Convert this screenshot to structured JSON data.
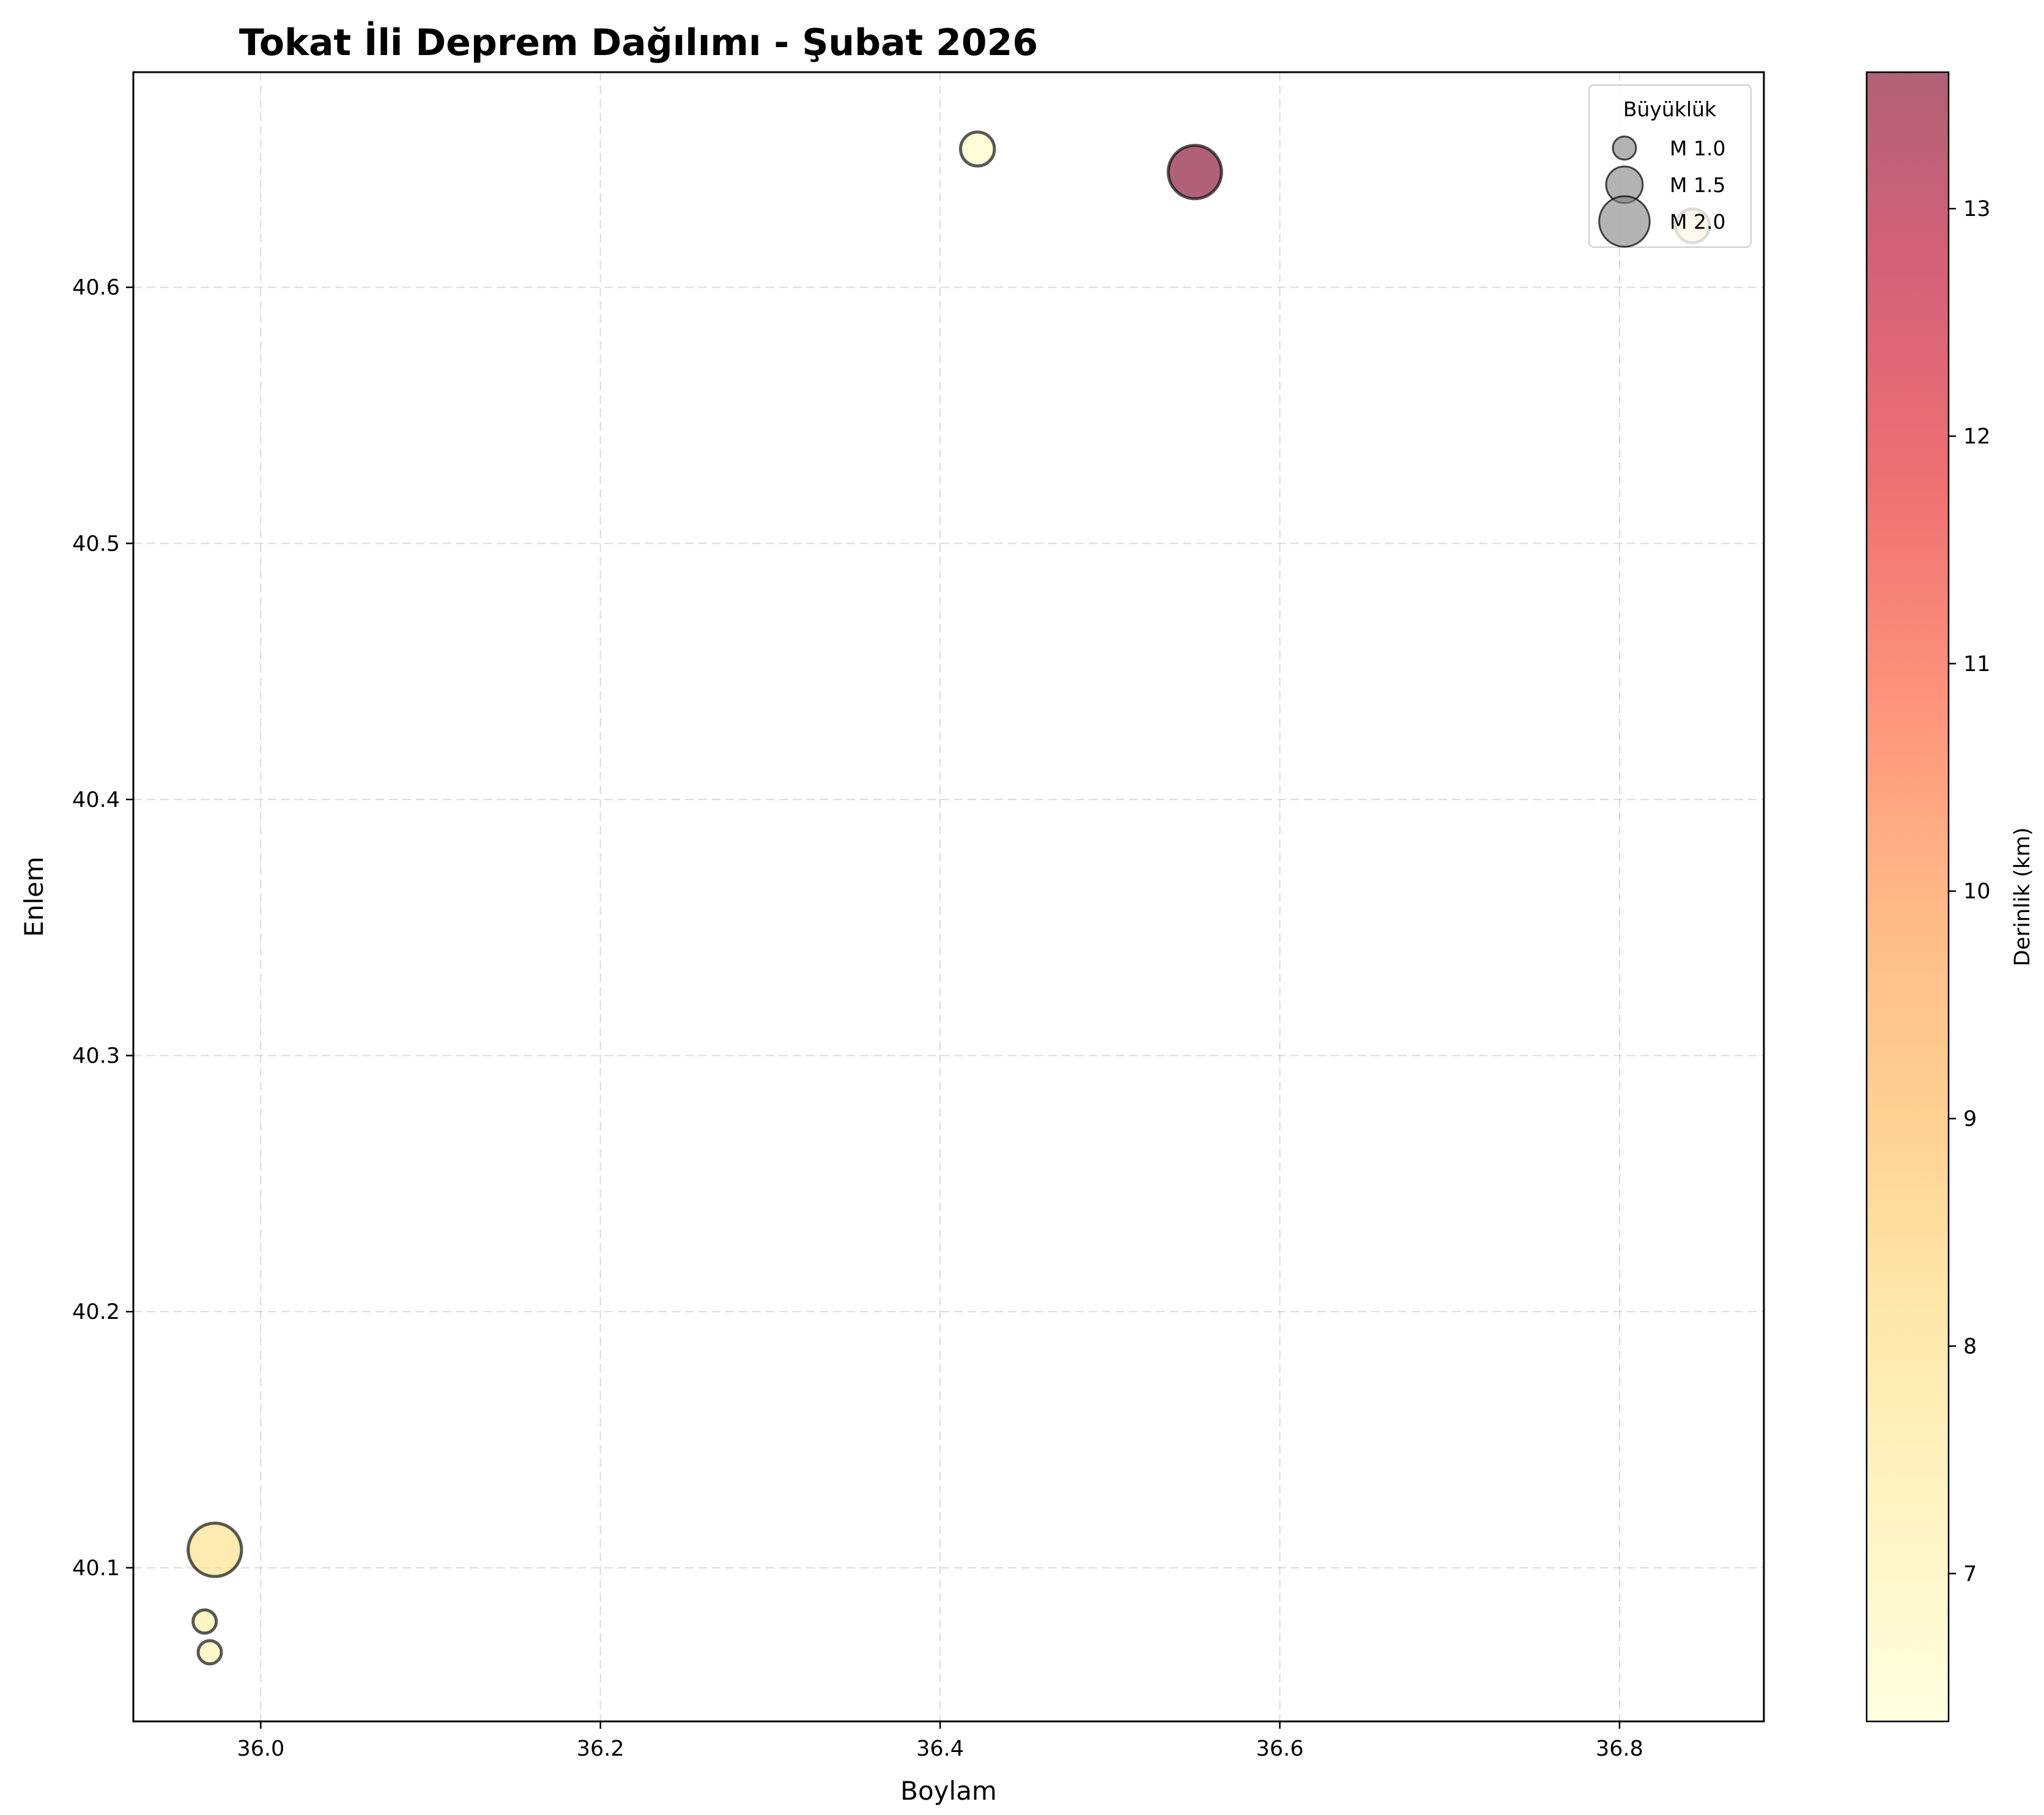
{
  "chart_data": {
    "type": "scatter",
    "title": "Tokat İli Deprem Dağılımı - Şubat 2026",
    "xlabel": "Boylam",
    "ylabel": "Enlem",
    "xlim": [
      35.925,
      36.885
    ],
    "ylim": [
      40.04,
      40.684
    ],
    "xticks": [
      "36.0",
      "36.2",
      "36.4",
      "36.6",
      "36.8"
    ],
    "yticks": [
      "40.1",
      "40.2",
      "40.3",
      "40.4",
      "40.5",
      "40.6"
    ],
    "grid": true,
    "points": [
      {
        "lon": 35.973,
        "lat": 40.107,
        "mag": 2.1,
        "depth": 7.9
      },
      {
        "lon": 35.967,
        "lat": 40.079,
        "mag": 1.0,
        "depth": 7.2
      },
      {
        "lon": 35.97,
        "lat": 40.067,
        "mag": 1.0,
        "depth": 7.0
      },
      {
        "lon": 36.422,
        "lat": 40.654,
        "mag": 1.4,
        "depth": 6.6
      },
      {
        "lon": 36.55,
        "lat": 40.645,
        "mag": 2.1,
        "depth": 13.6
      },
      {
        "lon": 36.843,
        "lat": 40.624,
        "mag": 1.4,
        "depth": 8.6
      }
    ],
    "legend": {
      "title": "Büyüklük",
      "placement": "top-right",
      "entries": [
        {
          "label": "M 1.0",
          "mag": 1.0
        },
        {
          "label": "M 1.5",
          "mag": 1.5
        },
        {
          "label": "M 2.0",
          "mag": 2.0
        }
      ]
    },
    "colorbar": {
      "label": "Derinlik (km)",
      "min": 6.35,
      "max": 13.6,
      "ticks": [
        "7",
        "8",
        "9",
        "10",
        "11",
        "12",
        "13"
      ],
      "colormap": [
        "#ffffcc",
        "#ffeda0",
        "#fed976",
        "#feb24c",
        "#fd8d3c",
        "#fc4e2a",
        "#e31a1c",
        "#bd0026",
        "#800026"
      ]
    }
  }
}
